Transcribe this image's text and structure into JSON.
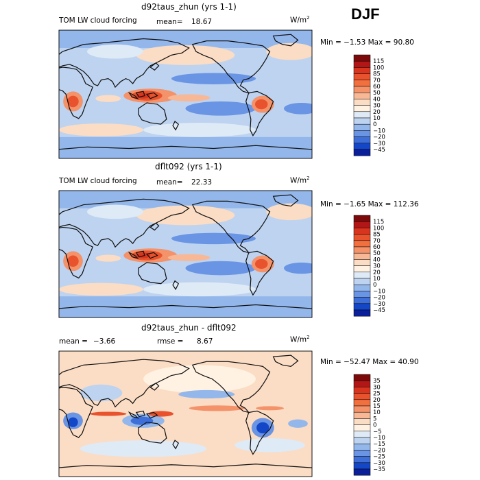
{
  "season": "DJF",
  "panels": [
    {
      "title": "d92taus_zhun (yrs 1-1)",
      "left_label": "TOM LW cloud forcing",
      "stat_label": "mean=",
      "stat_value": "18.67",
      "units": "W/m",
      "units_sup": "2",
      "minmax": "Min =  −1.53 Max =  90.80",
      "colorbar": {
        "labels": [
          "115",
          "100",
          "85",
          "70",
          "60",
          "50",
          "40",
          "30",
          "20",
          "10",
          "0",
          "−10",
          "−20",
          "−30",
          "−45"
        ],
        "colors": [
          "#7d0a0a",
          "#b31616",
          "#d8341e",
          "#e8522c",
          "#f07040",
          "#f4926a",
          "#f8b896",
          "#fbdcc4",
          "#fff2e2",
          "#dfeaf7",
          "#bdd3f0",
          "#93b7eb",
          "#6a95e4",
          "#3e6fd9",
          "#1446c8",
          "#0a1f99"
        ]
      }
    },
    {
      "title": "dflt092 (yrs 1-1)",
      "left_label": "TOM LW cloud forcing",
      "stat_label": "mean=",
      "stat_value": "22.33",
      "units": "W/m",
      "units_sup": "2",
      "minmax": "Min =  −1.65 Max = 112.36",
      "colorbar": {
        "labels": [
          "115",
          "100",
          "85",
          "70",
          "60",
          "50",
          "40",
          "30",
          "20",
          "10",
          "0",
          "−10",
          "−20",
          "−30",
          "−45"
        ],
        "colors": [
          "#7d0a0a",
          "#b31616",
          "#d8341e",
          "#e8522c",
          "#f07040",
          "#f4926a",
          "#f8b896",
          "#fbdcc4",
          "#fff2e2",
          "#dfeaf7",
          "#bdd3f0",
          "#93b7eb",
          "#6a95e4",
          "#3e6fd9",
          "#1446c8",
          "#0a1f99"
        ]
      }
    },
    {
      "title": "d92taus_zhun - dflt092",
      "left_label": "mean =",
      "left_value": "−3.66",
      "stat_label": "rmse =",
      "stat_value": "8.67",
      "units": "W/m",
      "units_sup": "2",
      "minmax": "Min = −52.47 Max =  40.90",
      "colorbar": {
        "labels": [
          "35",
          "30",
          "25",
          "20",
          "15",
          "10",
          "5",
          "0",
          "−5",
          "−10",
          "−15",
          "−20",
          "−25",
          "−30",
          "−35"
        ],
        "colors": [
          "#7d0a0a",
          "#b31616",
          "#d8341e",
          "#e8522c",
          "#f07040",
          "#f4926a",
          "#f8b896",
          "#fbdcc4",
          "#fff2e2",
          "#dfeaf7",
          "#bdd3f0",
          "#93b7eb",
          "#6a95e4",
          "#3e6fd9",
          "#1446c8",
          "#0a1f99"
        ]
      }
    }
  ],
  "chart_data": [
    {
      "type": "heatmap",
      "title": "d92taus_zhun (yrs 1-1)",
      "variable": "TOM LW cloud forcing",
      "season": "DJF",
      "units": "W/m2",
      "mean": 18.67,
      "min": -1.53,
      "max": 90.8,
      "contour_levels": [
        -45,
        -30,
        -20,
        -10,
        0,
        10,
        20,
        30,
        40,
        50,
        60,
        70,
        85,
        100,
        115
      ]
    },
    {
      "type": "heatmap",
      "title": "dflt092 (yrs 1-1)",
      "variable": "TOM LW cloud forcing",
      "season": "DJF",
      "units": "W/m2",
      "mean": 22.33,
      "min": -1.65,
      "max": 112.36,
      "contour_levels": [
        -45,
        -30,
        -20,
        -10,
        0,
        10,
        20,
        30,
        40,
        50,
        60,
        70,
        85,
        100,
        115
      ]
    },
    {
      "type": "heatmap",
      "title": "d92taus_zhun - dflt092",
      "season": "DJF",
      "units": "W/m2",
      "mean": -3.66,
      "rmse": 8.67,
      "min": -52.47,
      "max": 40.9,
      "contour_levels": [
        -35,
        -30,
        -25,
        -20,
        -15,
        -10,
        -5,
        0,
        5,
        10,
        15,
        20,
        25,
        30,
        35
      ]
    }
  ]
}
